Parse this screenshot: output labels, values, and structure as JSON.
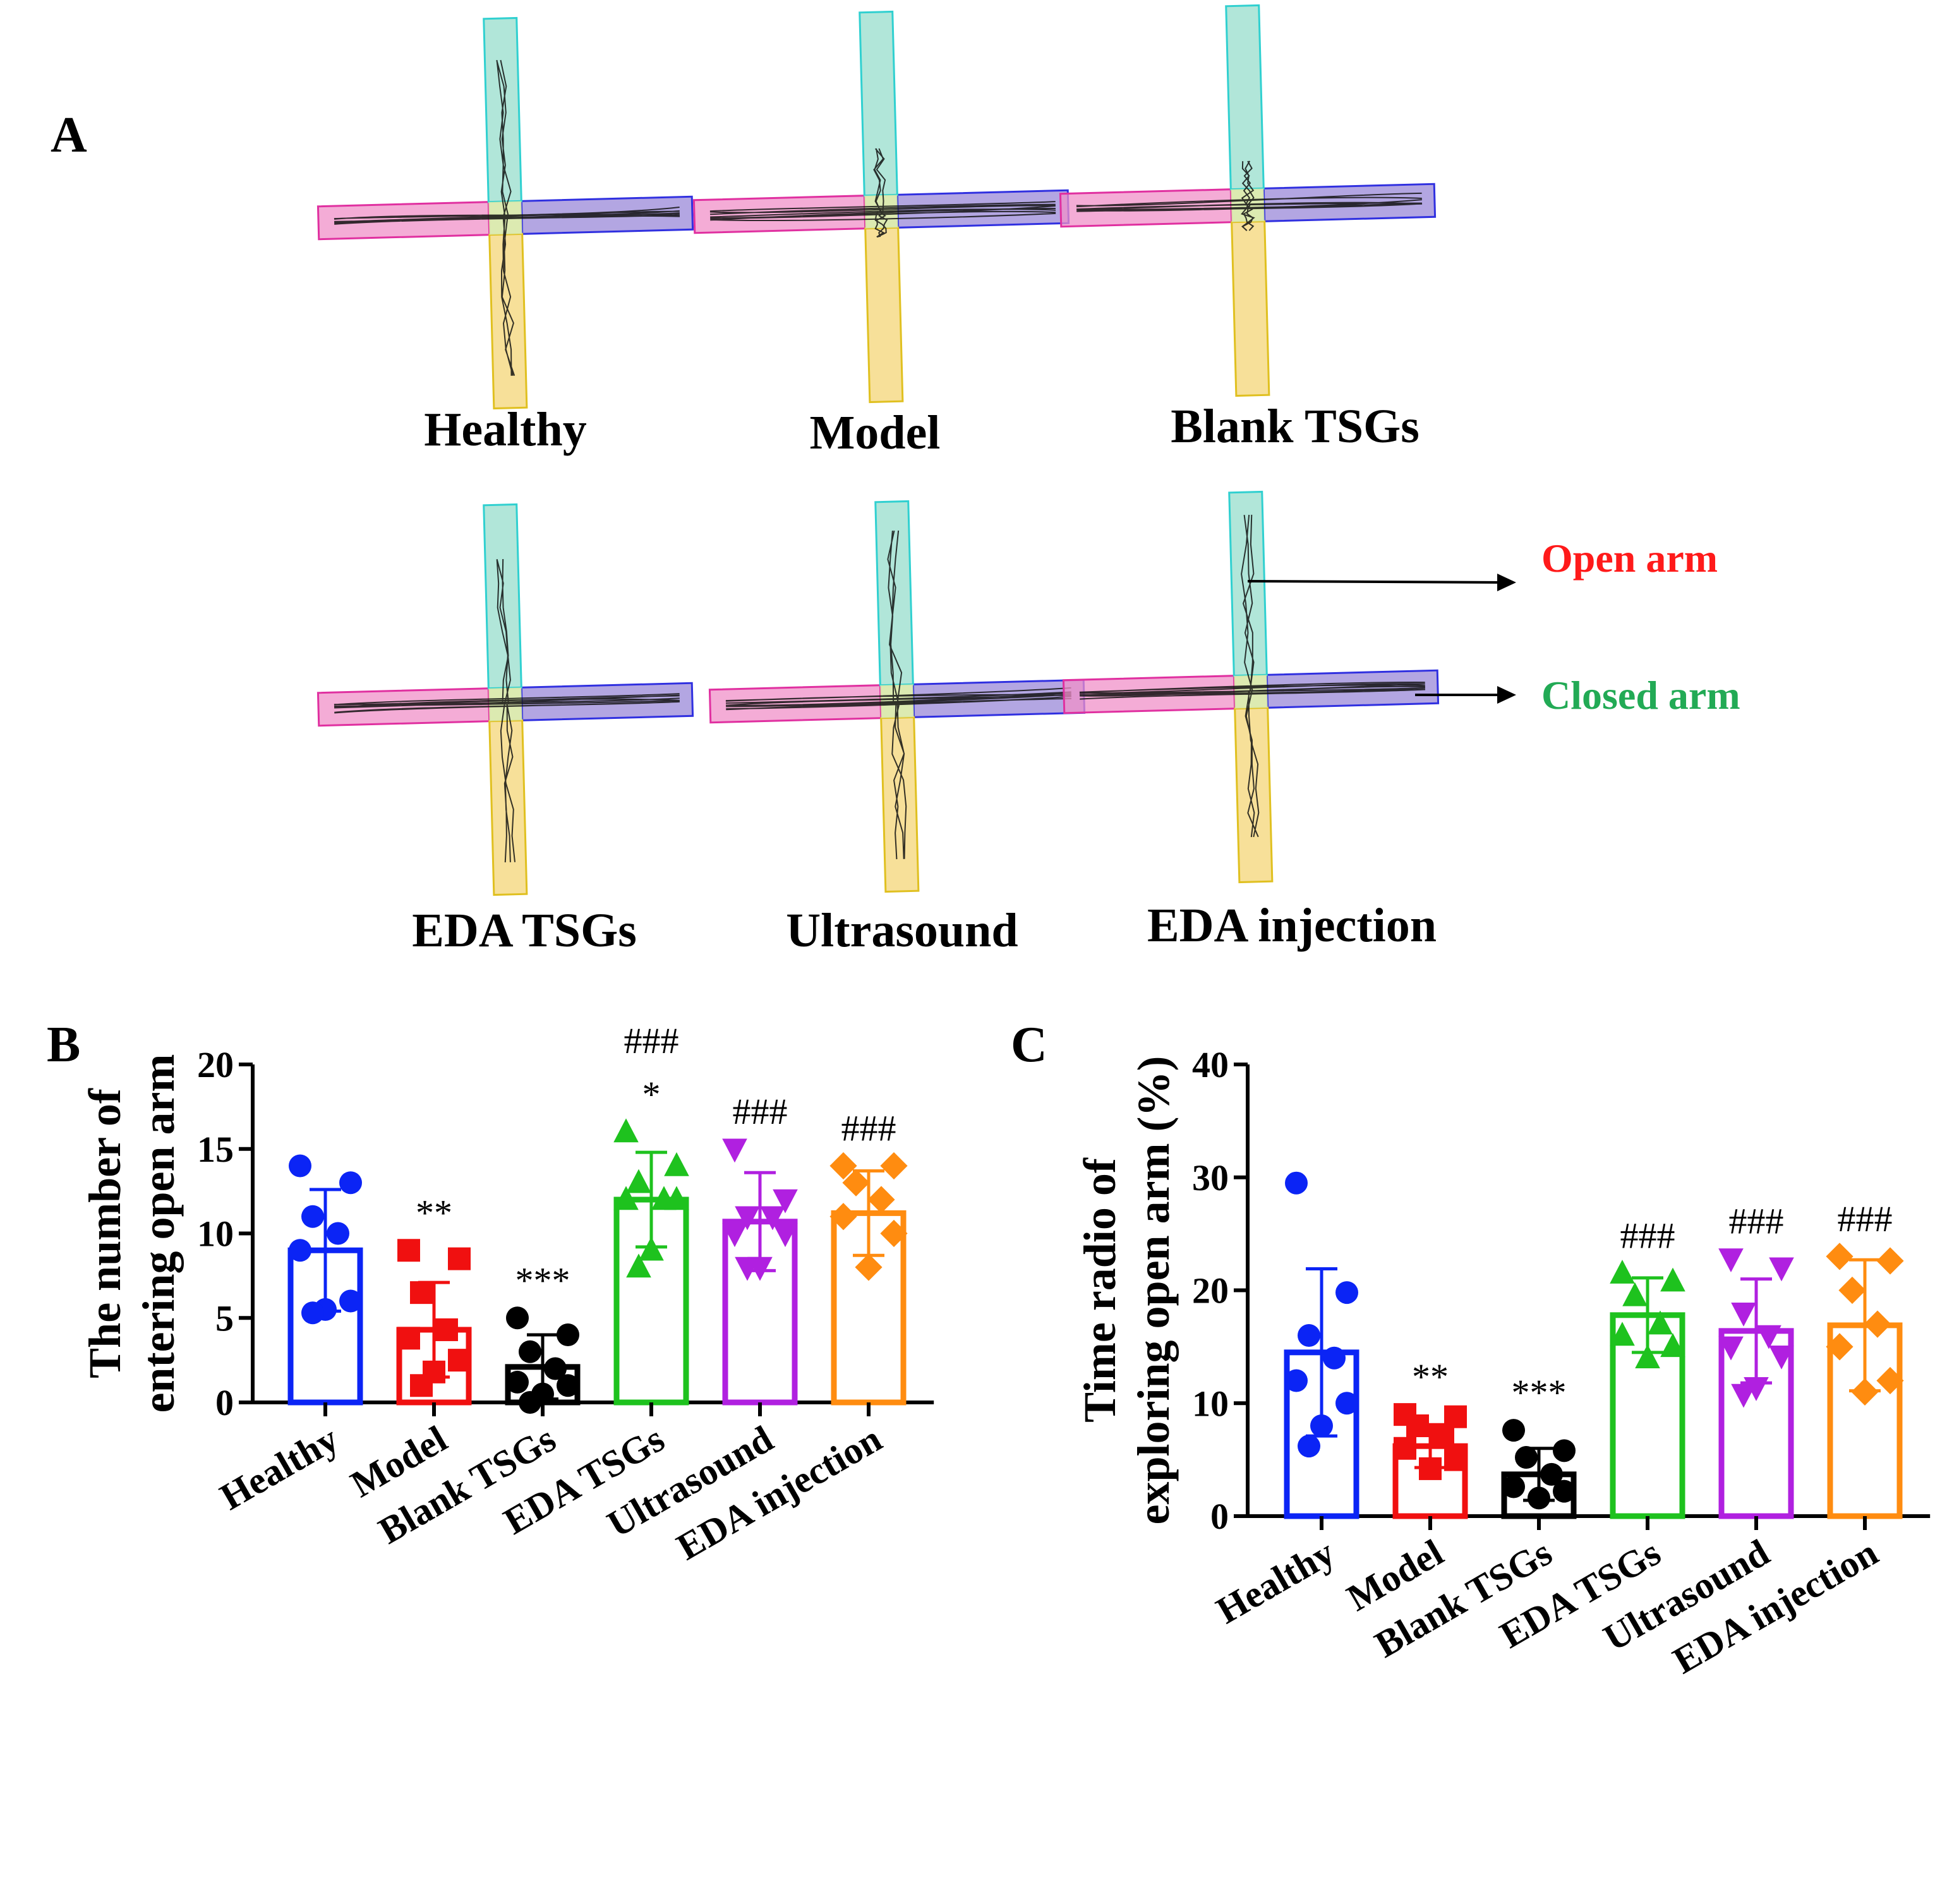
{
  "panels": {
    "a": "A",
    "b": "B",
    "c": "C"
  },
  "maze": {
    "groups": [
      "Healthy",
      "Model",
      "Blank TSGs",
      "EDA TSGs",
      "Ultrasound",
      "EDA injection"
    ],
    "legend": {
      "open_arm": "Open arm",
      "closed_arm": "Closed arm"
    },
    "colors": {
      "open_left": "#f090c8",
      "closed_right": "#9a88d8",
      "top": "#9ee0d0",
      "bottom": "#f5d880",
      "center": "#d8e8a8",
      "open_label": "#ff1a1a",
      "closed_label": "#22aa55"
    }
  },
  "chart_data": [
    {
      "type": "bar",
      "panel": "B",
      "categories": [
        "Healthy",
        "Model",
        "Blank TSGs",
        "EDA TSGs",
        "Ultrasound",
        "EDA injection"
      ],
      "values": [
        9.0,
        4.3,
        2.1,
        12.0,
        10.7,
        11.2
      ],
      "error": [
        3.6,
        2.8,
        1.9,
        2.8,
        2.9,
        2.5
      ],
      "points": [
        [
          14,
          13,
          11,
          10,
          9,
          6,
          5.5,
          5.3
        ],
        [
          9.0,
          8.5,
          6.5,
          4.3,
          3.8,
          2.5,
          1.8,
          1.0
        ],
        [
          5.0,
          4.0,
          3.0,
          2.0,
          1.2,
          1.0,
          0.5,
          0.0
        ],
        [
          16,
          14,
          13,
          12,
          12,
          12,
          9,
          8
        ],
        [
          15,
          12,
          11,
          11,
          10,
          10,
          8,
          8
        ],
        [
          14,
          14,
          13,
          12,
          11,
          10,
          8
        ]
      ],
      "significance": [
        "",
        "**",
        "***",
        "###\n*",
        "###",
        "###"
      ],
      "colors": [
        "#0b24f5",
        "#f01010",
        "#000000",
        "#1ec21e",
        "#b020e0",
        "#ff8c10"
      ],
      "ylabel": "The number of\nentering open arm",
      "ylim": [
        0,
        20
      ],
      "yticks": [
        0,
        5,
        10,
        15,
        20
      ]
    },
    {
      "type": "bar",
      "panel": "C",
      "categories": [
        "Healthy",
        "Model",
        "Blank TSGs",
        "EDA TSGs",
        "Ultrasound",
        "EDA injection"
      ],
      "values": [
        14.5,
        6.2,
        3.7,
        17.8,
        16.4,
        16.9
      ],
      "error": [
        7.4,
        1.9,
        2.3,
        3.3,
        4.6,
        5.8
      ],
      "points": [
        [
          29.5,
          19.8,
          16,
          14,
          12,
          10,
          8,
          6.2
        ],
        [
          9,
          8.8,
          8,
          7,
          6,
          5,
          4.2
        ],
        [
          7.6,
          5.8,
          5.2,
          3.7,
          2.6,
          2.2,
          1.6
        ],
        [
          21.5,
          20.8,
          19.5,
          17,
          16,
          15,
          14
        ],
        [
          22.8,
          22,
          18,
          16,
          15,
          14.2,
          11.4,
          10.8
        ],
        [
          23,
          22.6,
          20,
          17,
          15,
          12,
          11
        ]
      ],
      "significance": [
        "",
        "**",
        "***",
        "###",
        "###",
        "###"
      ],
      "colors": [
        "#0b24f5",
        "#f01010",
        "#000000",
        "#1ec21e",
        "#b020e0",
        "#ff8c10"
      ],
      "ylabel": "Time radio of\nexploring open arm (%)",
      "ylim": [
        0,
        40
      ],
      "yticks": [
        0,
        10,
        20,
        30,
        40
      ]
    }
  ]
}
